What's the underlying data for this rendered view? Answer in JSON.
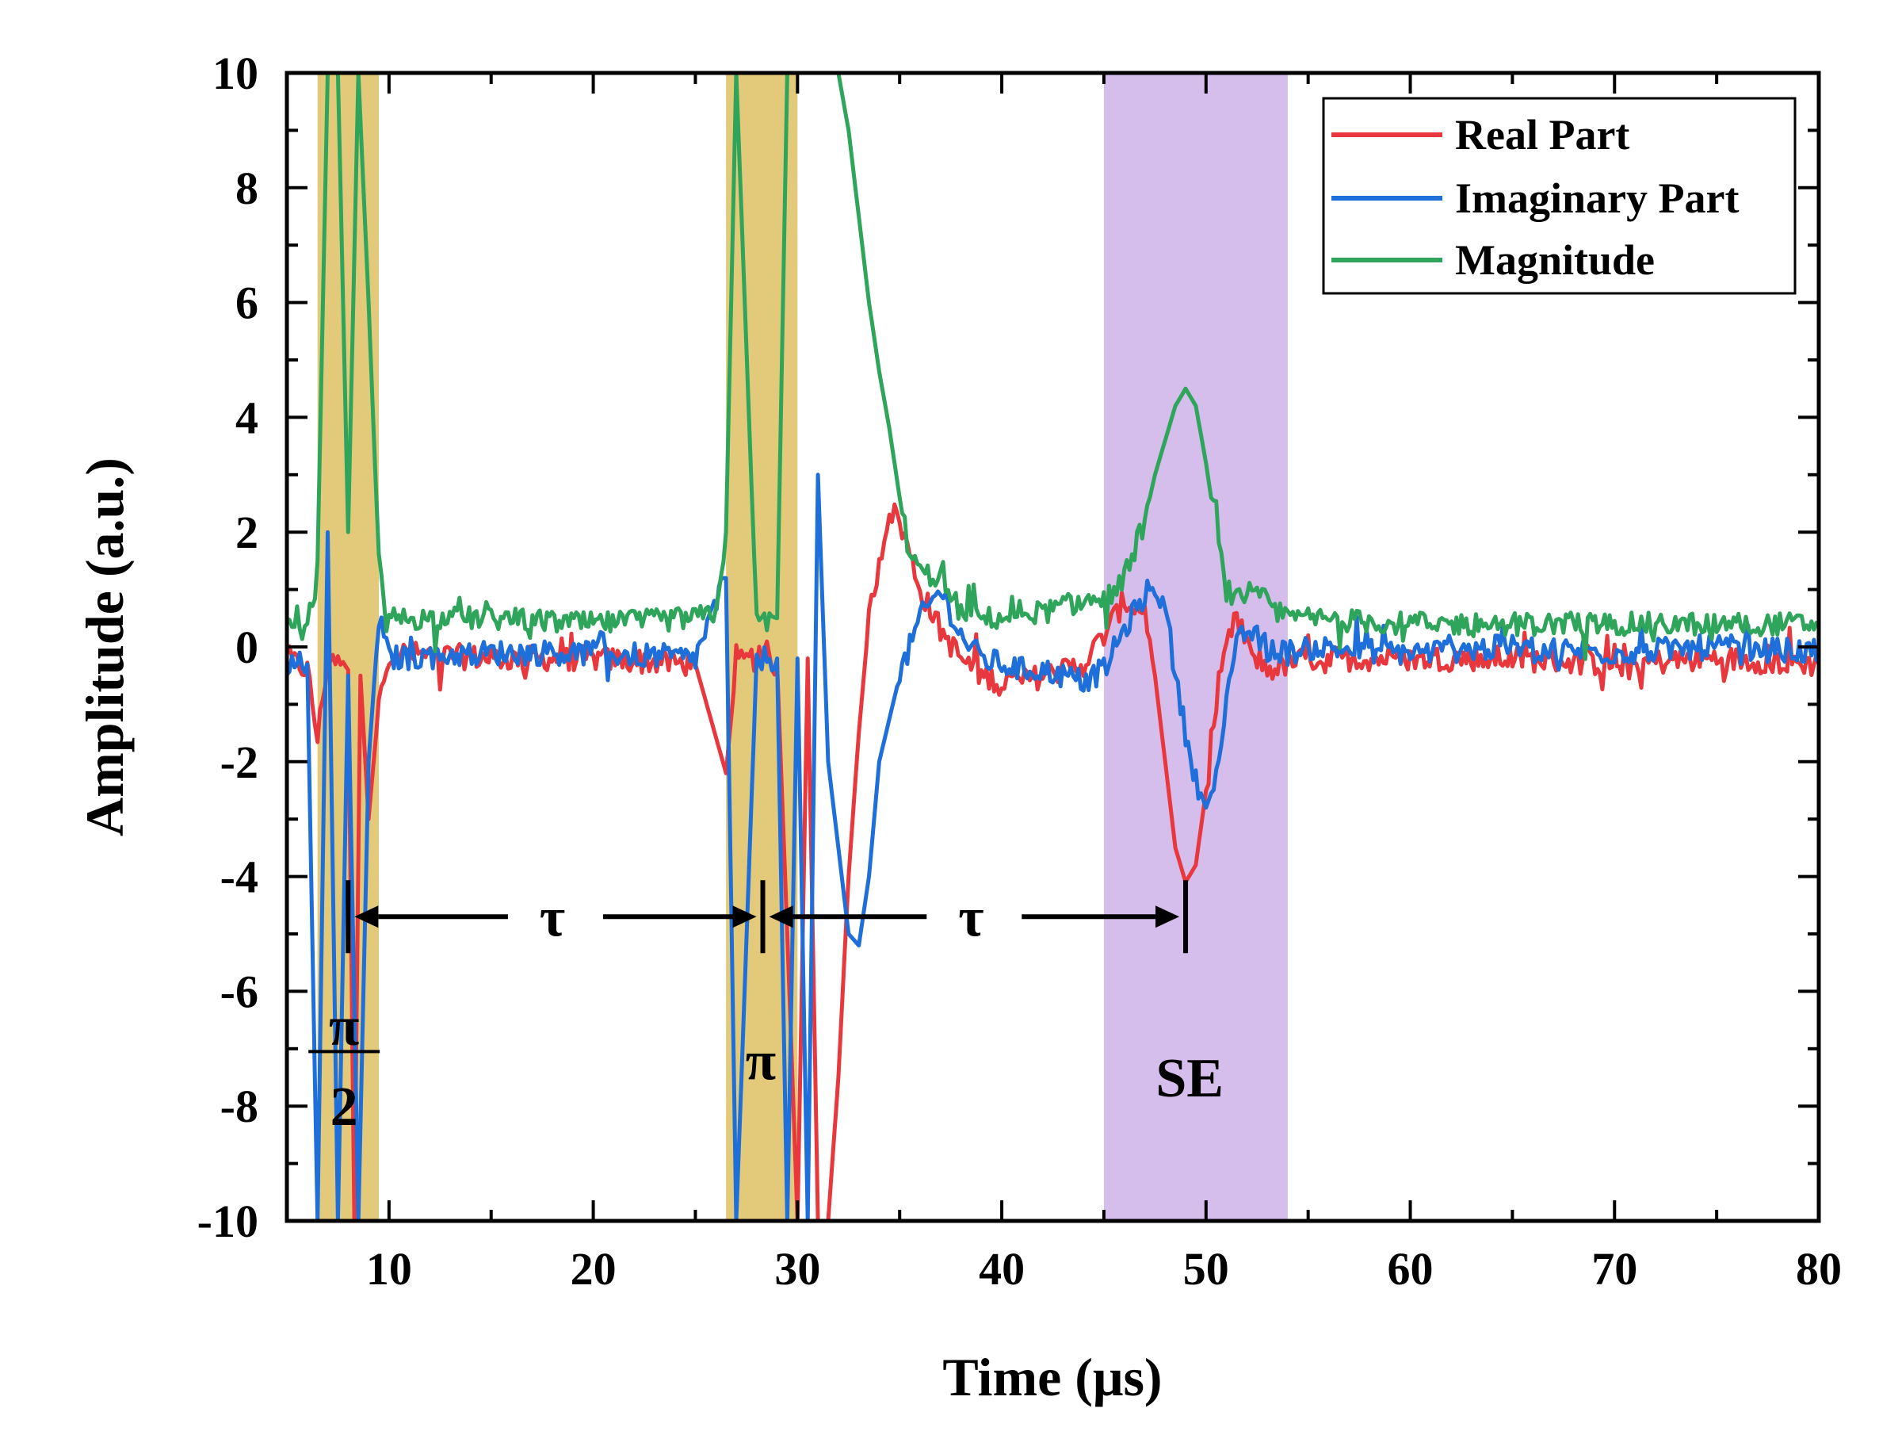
{
  "chart_data": {
    "type": "line",
    "title": "",
    "xlabel": "Time (μs)",
    "ylabel": "Amplitude (a.u.)",
    "xlim": [
      5,
      80
    ],
    "ylim": [
      -10,
      10
    ],
    "x_ticks": [
      10,
      20,
      30,
      40,
      50,
      60,
      70,
      80
    ],
    "y_ticks": [
      -10,
      -8,
      -6,
      -4,
      -2,
      0,
      2,
      4,
      6,
      8,
      10
    ],
    "grid": false,
    "legend_position": "top-right",
    "series": [
      {
        "name": "Real Part",
        "color": "#e8383d",
        "points": [
          [
            5,
            -0.2
          ],
          [
            6,
            -0.4
          ],
          [
            6.5,
            -1.6
          ],
          [
            7,
            -0.2
          ],
          [
            8,
            -0.4
          ],
          [
            8.3,
            -10
          ],
          [
            8.6,
            -0.5
          ],
          [
            9,
            -3
          ],
          [
            9.5,
            -1
          ],
          [
            10,
            -0.1
          ],
          [
            15,
            -0.2
          ],
          [
            20,
            -0.2
          ],
          [
            25,
            -0.3
          ],
          [
            26.5,
            -2.2
          ],
          [
            27,
            -0.3
          ],
          [
            28,
            -0.2
          ],
          [
            29,
            -0.3
          ],
          [
            29.5,
            -5
          ],
          [
            30,
            -10
          ],
          [
            30.5,
            -0.2
          ],
          [
            31,
            -10
          ],
          [
            31.5,
            -10
          ],
          [
            32,
            -7.5
          ],
          [
            32.5,
            -4
          ],
          [
            33,
            -1.5
          ],
          [
            33.5,
            0.5
          ],
          [
            34,
            1.5
          ],
          [
            34.5,
            2.4
          ],
          [
            35,
            2.2
          ],
          [
            36,
            1
          ],
          [
            37,
            0.3
          ],
          [
            38,
            -0.2
          ],
          [
            39,
            -0.5
          ],
          [
            40,
            -0.6
          ],
          [
            41,
            -0.6
          ],
          [
            42,
            -0.5
          ],
          [
            43,
            -0.4
          ],
          [
            44,
            -0.3
          ],
          [
            45,
            0.2
          ],
          [
            46,
            0.8
          ],
          [
            47,
            0.6
          ],
          [
            47.5,
            -0.5
          ],
          [
            48,
            -2
          ],
          [
            48.5,
            -3.5
          ],
          [
            49,
            -4.1
          ],
          [
            49.5,
            -3.8
          ],
          [
            50,
            -2.5
          ],
          [
            50.5,
            -1.2
          ],
          [
            51,
            0
          ],
          [
            51.5,
            0.5
          ],
          [
            52,
            0
          ],
          [
            53,
            -0.4
          ],
          [
            54,
            -0.3
          ],
          [
            55,
            -0.2
          ],
          [
            60,
            -0.2
          ],
          [
            65,
            -0.2
          ],
          [
            70,
            -0.3
          ],
          [
            75,
            -0.2
          ],
          [
            80,
            -0.3
          ]
        ]
      },
      {
        "name": "Imaginary Part",
        "color": "#1e6fd9",
        "points": [
          [
            5,
            -0.3
          ],
          [
            6,
            -0.3
          ],
          [
            6.5,
            -10
          ],
          [
            7,
            2
          ],
          [
            7.5,
            -10
          ],
          [
            8,
            -0.5
          ],
          [
            8.5,
            -10
          ],
          [
            9,
            -2
          ],
          [
            9.5,
            0.5
          ],
          [
            10,
            -0.2
          ],
          [
            15,
            -0.1
          ],
          [
            20,
            -0.1
          ],
          [
            25,
            -0.2
          ],
          [
            26.5,
            1.2
          ],
          [
            27,
            -10
          ],
          [
            28,
            -0.2
          ],
          [
            29,
            -0.2
          ],
          [
            29.5,
            -10
          ],
          [
            30,
            -0.2
          ],
          [
            30.5,
            -10
          ],
          [
            31,
            3
          ],
          [
            31.5,
            -2
          ],
          [
            32,
            -3.5
          ],
          [
            32.5,
            -5
          ],
          [
            33,
            -5.2
          ],
          [
            33.5,
            -4
          ],
          [
            34,
            -2
          ],
          [
            35,
            -0.5
          ],
          [
            36,
            0.5
          ],
          [
            37,
            1
          ],
          [
            38,
            0.2
          ],
          [
            39,
            -0.2
          ],
          [
            40,
            -0.3
          ],
          [
            41,
            -0.4
          ],
          [
            42,
            -0.4
          ],
          [
            43,
            -0.5
          ],
          [
            44,
            -0.6
          ],
          [
            45,
            -0.4
          ],
          [
            46,
            0.3
          ],
          [
            47,
            0.9
          ],
          [
            47.5,
            1.1
          ],
          [
            48,
            0.6
          ],
          [
            48.5,
            -0.5
          ],
          [
            49,
            -1.5
          ],
          [
            49.5,
            -2.3
          ],
          [
            50,
            -2.8
          ],
          [
            50.5,
            -2.3
          ],
          [
            51,
            -1
          ],
          [
            51.5,
            0
          ],
          [
            52,
            0.3
          ],
          [
            53,
            0
          ],
          [
            54,
            -0.1
          ],
          [
            55,
            0
          ],
          [
            60,
            -0.1
          ],
          [
            65,
            0
          ],
          [
            70,
            -0.1
          ],
          [
            75,
            0
          ],
          [
            80,
            -0.1
          ]
        ]
      },
      {
        "name": "Magnitude",
        "color": "#2ea55a",
        "points": [
          [
            5,
            0.3
          ],
          [
            6,
            0.3
          ],
          [
            6.5,
            1.5
          ],
          [
            7,
            10
          ],
          [
            7.5,
            10
          ],
          [
            8,
            2
          ],
          [
            8.5,
            10
          ],
          [
            9,
            6
          ],
          [
            9.5,
            1.5
          ],
          [
            10,
            0.5
          ],
          [
            15,
            0.5
          ],
          [
            20,
            0.4
          ],
          [
            25,
            0.5
          ],
          [
            26,
            0.6
          ],
          [
            26.5,
            2
          ],
          [
            27,
            10
          ],
          [
            28,
            0.4
          ],
          [
            29,
            0.5
          ],
          [
            29.5,
            10
          ],
          [
            30,
            10
          ],
          [
            30.5,
            10
          ],
          [
            31,
            10
          ],
          [
            31.5,
            10
          ],
          [
            32,
            10
          ],
          [
            32.5,
            9
          ],
          [
            33,
            7.5
          ],
          [
            33.5,
            6
          ],
          [
            34,
            4.8
          ],
          [
            34.5,
            3.8
          ],
          [
            35,
            2.6
          ],
          [
            35.5,
            1.6
          ],
          [
            36,
            1.3
          ],
          [
            37,
            1.2
          ],
          [
            38,
            0.6
          ],
          [
            39,
            0.5
          ],
          [
            40,
            0.5
          ],
          [
            41,
            0.6
          ],
          [
            42,
            0.6
          ],
          [
            43,
            0.7
          ],
          [
            44,
            0.8
          ],
          [
            45,
            0.8
          ],
          [
            46,
            1.2
          ],
          [
            47,
            2.2
          ],
          [
            47.5,
            3
          ],
          [
            48,
            3.6
          ],
          [
            48.5,
            4.2
          ],
          [
            49,
            4.5
          ],
          [
            49.5,
            4.2
          ],
          [
            50,
            3.2
          ],
          [
            50.5,
            2
          ],
          [
            51,
            1
          ],
          [
            51.5,
            0.8
          ],
          [
            52,
            0.9
          ],
          [
            53,
            0.8
          ],
          [
            54,
            0.5
          ],
          [
            55,
            0.5
          ],
          [
            60,
            0.4
          ],
          [
            65,
            0.4
          ],
          [
            70,
            0.4
          ],
          [
            75,
            0.4
          ],
          [
            80,
            0.4
          ]
        ]
      }
    ],
    "shaded_regions": [
      {
        "x0": 6.5,
        "x1": 9.5,
        "color": "#e3c97a"
      },
      {
        "x0": 26.5,
        "x1": 30.0,
        "color": "#e3c97a"
      },
      {
        "x0": 45.0,
        "x1": 54.0,
        "color": "#d5bdec"
      }
    ],
    "annotations": [
      {
        "text": "τ",
        "x": 18,
        "y": -4.7
      },
      {
        "text": "τ",
        "x": 38.5,
        "y": -4.7
      },
      {
        "text": "π",
        "x": 28.2,
        "y": -7.2
      },
      {
        "text": "SE",
        "x": 49.2,
        "y": -7.5
      },
      {
        "text": "π",
        "x": 7.8,
        "y": -6.6
      },
      {
        "text": "2",
        "x": 7.8,
        "y": -8
      }
    ],
    "tau_arrows": [
      {
        "x0": 8.0,
        "x1": 28.3,
        "y": -4.7
      },
      {
        "x0": 28.3,
        "x1": 49.0,
        "y": -4.7
      }
    ]
  }
}
